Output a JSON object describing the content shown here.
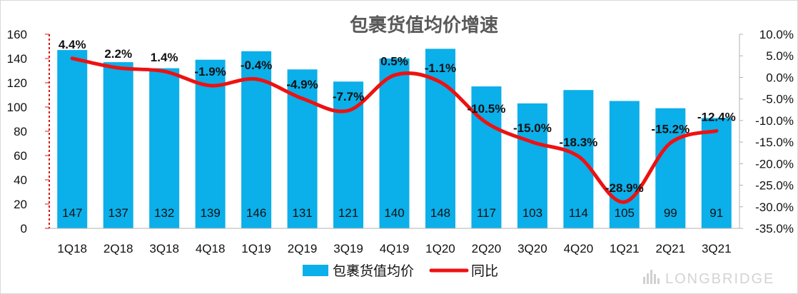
{
  "chart_data": {
    "type": "bar",
    "title": "包裹货值均价增速",
    "categories": [
      "1Q18",
      "2Q18",
      "3Q18",
      "4Q18",
      "1Q19",
      "2Q19",
      "3Q19",
      "4Q19",
      "1Q20",
      "2Q20",
      "3Q20",
      "4Q20",
      "1Q21",
      "2Q21",
      "3Q21"
    ],
    "series": [
      {
        "name": "包裹货值均价",
        "type": "bar",
        "axis": "left",
        "values": [
          147,
          137,
          132,
          139,
          146,
          131,
          121,
          140,
          148,
          117,
          103,
          114,
          105,
          99,
          91
        ],
        "labels": [
          "147",
          "137",
          "132",
          "139",
          "146",
          "131",
          "121",
          "140",
          "148",
          "117",
          "103",
          "114",
          "105",
          "99",
          "91"
        ]
      },
      {
        "name": "同比",
        "type": "line",
        "axis": "right",
        "values": [
          4.4,
          2.2,
          1.4,
          -1.9,
          -0.4,
          -4.9,
          -7.7,
          0.5,
          -1.1,
          -10.5,
          -15.0,
          -18.3,
          -28.9,
          -15.2,
          -12.4
        ],
        "labels": [
          "4.4%",
          "2.2%",
          "1.4%",
          "-1.9%",
          "-0.4%",
          "-4.9%",
          "-7.7%",
          "0.5%",
          "-1.1%",
          "-10.5%",
          "-15.0%",
          "-18.3%",
          "-28.9%",
          "-15.2%",
          "-12.4%"
        ]
      }
    ],
    "y_left": {
      "min": 0,
      "max": 160,
      "step": 20,
      "ticks": [
        "0",
        "20",
        "40",
        "60",
        "80",
        "100",
        "120",
        "140",
        "160"
      ]
    },
    "y_right": {
      "min": -35,
      "max": 10,
      "step": 5,
      "ticks": [
        "-35.0%",
        "-30.0%",
        "-25.0%",
        "-20.0%",
        "-15.0%",
        "-10.0%",
        "-5.0%",
        "0.0%",
        "5.0%",
        "10.0%"
      ]
    },
    "grid": false,
    "legend_position": "bottom",
    "colors": {
      "bar": "#0BAFEA",
      "line": "#EE1111",
      "text": "#111111",
      "title": "#595959",
      "axis": "#B0B0B0"
    }
  },
  "watermark": {
    "text": "LONGBRIDGE"
  }
}
